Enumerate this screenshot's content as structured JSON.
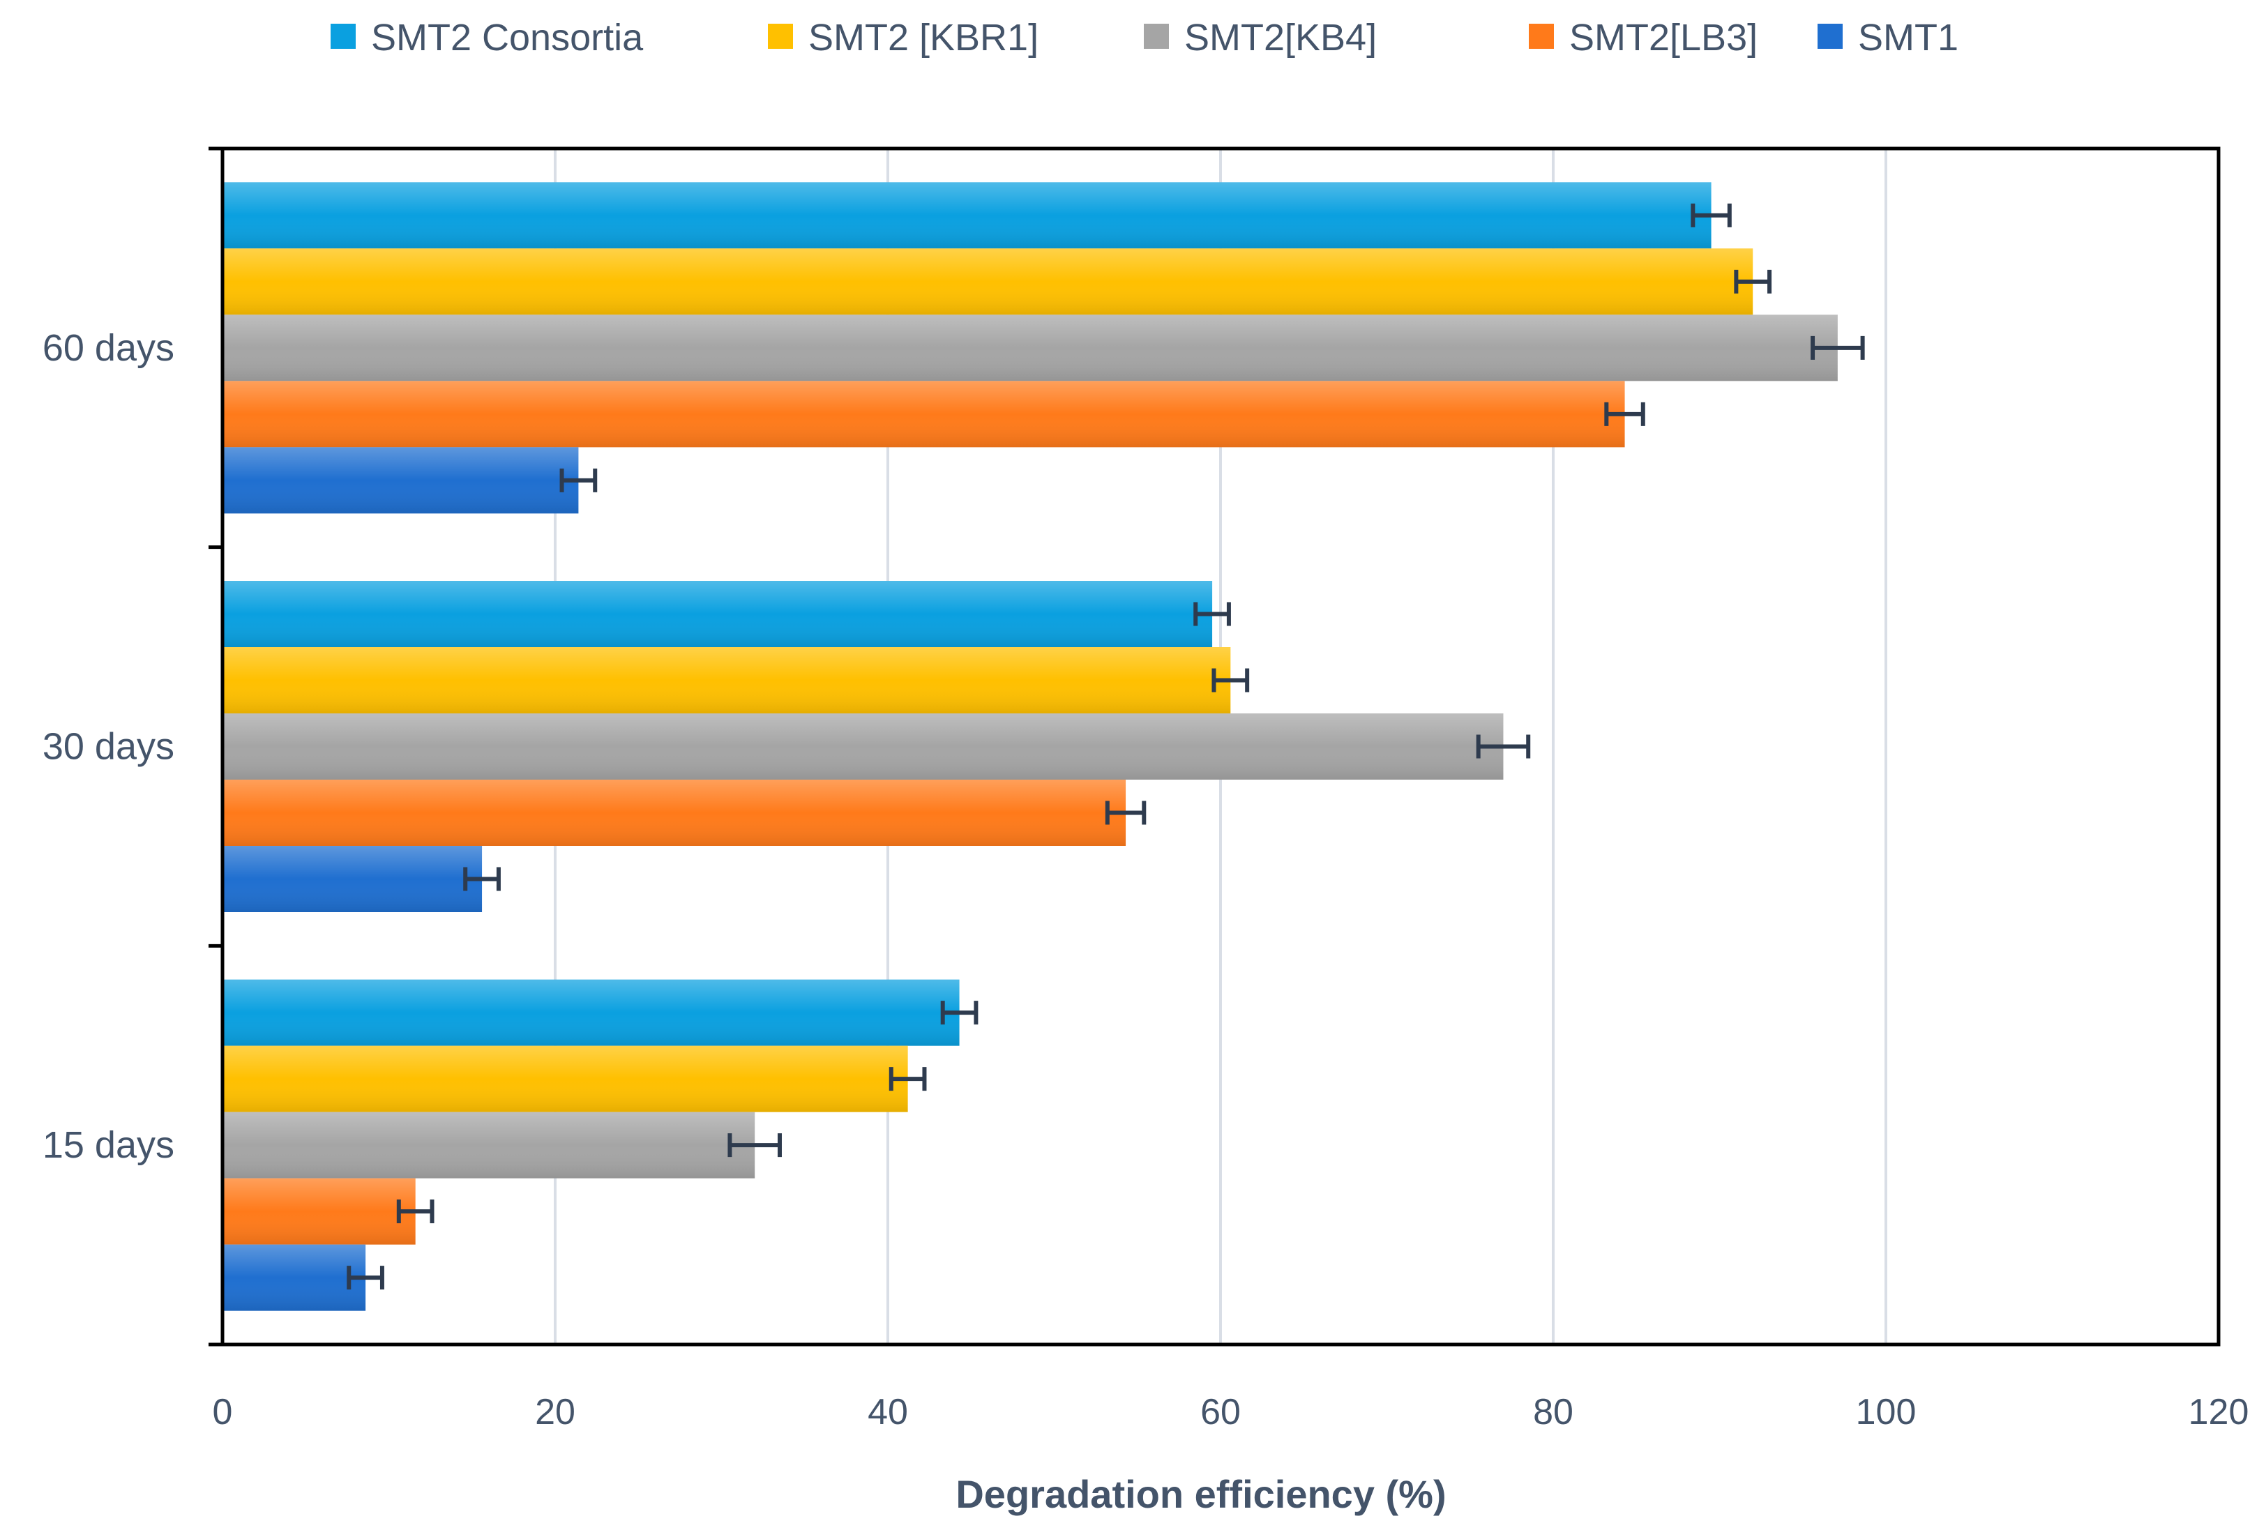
{
  "chart_data": {
    "type": "bar",
    "orientation": "horizontal",
    "title": "",
    "xlabel": "Degradation efficiency (%)",
    "ylabel": "",
    "xlim": [
      0,
      120
    ],
    "xticks": [
      0,
      20,
      40,
      60,
      80,
      100,
      120
    ],
    "grid": true,
    "legend_position": "top",
    "categories": [
      "15 days",
      "30 days",
      "60 days"
    ],
    "series": [
      {
        "name": "SMT2 Consortia",
        "color": "#0aa0e0",
        "values": [
          44.3,
          59.5,
          89.5
        ],
        "errors": [
          1.0,
          1.0,
          1.1
        ]
      },
      {
        "name": "SMT2 [KBR1]",
        "color": "#ffc000",
        "values": [
          41.2,
          60.6,
          92.0
        ],
        "errors": [
          1.0,
          1.0,
          1.0
        ]
      },
      {
        "name": "SMT2[KB4]",
        "color": "#a5a5a5",
        "values": [
          32.0,
          77.0,
          97.1
        ],
        "errors": [
          1.5,
          1.5,
          1.5
        ]
      },
      {
        "name": "SMT2[LB3]",
        "color": "#ff7a1a",
        "values": [
          11.6,
          54.3,
          84.3
        ],
        "errors": [
          1.0,
          1.1,
          1.1
        ]
      },
      {
        "name": "SMT1",
        "color": "#1f6fd0",
        "values": [
          8.6,
          15.6,
          21.4
        ],
        "errors": [
          1.0,
          1.0,
          1.0
        ]
      }
    ]
  }
}
